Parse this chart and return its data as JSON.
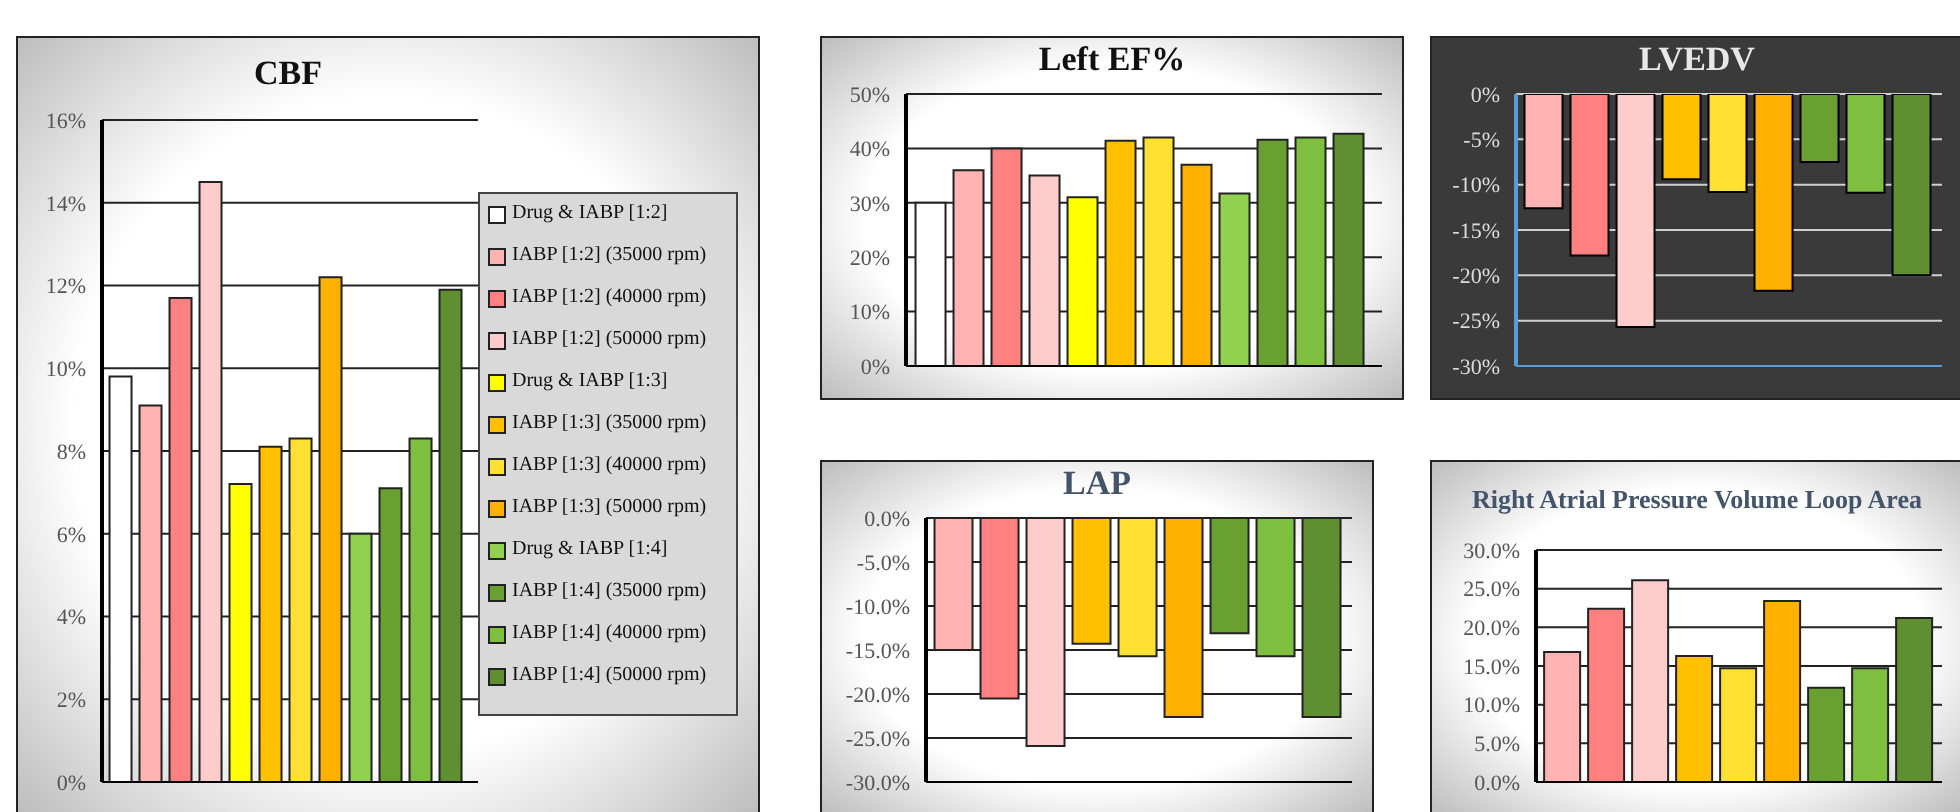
{
  "chart_data": [
    {
      "type": "bar",
      "title": "CBF",
      "categories": [
        null
      ],
      "ylim": [
        0,
        16
      ],
      "yticks": [
        {
          "value": 0,
          "label": "0%"
        },
        {
          "value": 2,
          "label": "2%"
        },
        {
          "value": 4,
          "label": "4%"
        },
        {
          "value": 6,
          "label": "6%"
        },
        {
          "value": 8,
          "label": "8%"
        },
        {
          "value": 10,
          "label": "10%"
        },
        {
          "value": 12,
          "label": "12%"
        },
        {
          "value": 14,
          "label": "14%"
        },
        {
          "value": 16,
          "label": "16%"
        }
      ],
      "grid": "y",
      "legend": "right",
      "tick_labels": "y",
      "series": [
        {
          "name": "Drug & IABP [1:2]",
          "color": "#ffffff",
          "values": [
            9.8
          ]
        },
        {
          "name": "IABP [1:2] (35000 rpm)",
          "color": "#ffb3b3",
          "values": [
            9.1
          ]
        },
        {
          "name": "IABP [1:2] (40000 rpm)",
          "color": "#ff8080",
          "values": [
            11.7
          ]
        },
        {
          "name": "IABP [1:2] (50000 rpm)",
          "color": "#ffcccc",
          "values": [
            14.5
          ]
        },
        {
          "name": "Drug & IABP [1:3]",
          "color": "#ffff00",
          "values": [
            7.2
          ]
        },
        {
          "name": "IABP [1:3] (35000 rpm)",
          "color": "#ffc000",
          "values": [
            8.1
          ]
        },
        {
          "name": "IABP [1:3] (40000 rpm)",
          "color": "#ffe033",
          "values": [
            8.3
          ]
        },
        {
          "name": "IABP [1:3] (50000 rpm)",
          "color": "#ffb000",
          "values": [
            12.2
          ]
        },
        {
          "name": "Drug & IABP [1:4]",
          "color": "#92d050",
          "values": [
            6.0
          ]
        },
        {
          "name": "IABP [1:4] (35000 rpm)",
          "color": "#6aa032",
          "values": [
            7.1
          ]
        },
        {
          "name": "IABP [1:4] (40000 rpm)",
          "color": "#7fbf40",
          "values": [
            8.3
          ]
        },
        {
          "name": "IABP [1:4] (50000 rpm)",
          "color": "#5f8f30",
          "values": [
            11.9
          ]
        }
      ]
    },
    {
      "type": "bar",
      "title": "Left EF%",
      "categories": [
        null
      ],
      "ylim": [
        0,
        50
      ],
      "yticks": [
        {
          "value": 0,
          "label": "0%"
        },
        {
          "value": 10,
          "label": "10%"
        },
        {
          "value": 20,
          "label": "20%"
        },
        {
          "value": 30,
          "label": "30%"
        },
        {
          "value": 40,
          "label": "40%"
        },
        {
          "value": 50,
          "label": "50%"
        }
      ],
      "grid": "y",
      "tick_labels": "y",
      "series": [
        {
          "color": "#ffffff",
          "values": [
            30
          ]
        },
        {
          "color": "#ffb3b3",
          "values": [
            36
          ]
        },
        {
          "color": "#ff8080",
          "values": [
            40
          ]
        },
        {
          "color": "#ffcccc",
          "values": [
            35
          ]
        },
        {
          "color": "#ffff00",
          "values": [
            31
          ]
        },
        {
          "color": "#ffc000",
          "values": [
            41.4
          ]
        },
        {
          "color": "#ffe033",
          "values": [
            42
          ]
        },
        {
          "color": "#ffb000",
          "values": [
            37
          ]
        },
        {
          "color": "#92d050",
          "values": [
            31.7
          ]
        },
        {
          "color": "#6aa032",
          "values": [
            41.6
          ]
        },
        {
          "color": "#7fbf40",
          "values": [
            42
          ]
        },
        {
          "color": "#5f8f30",
          "values": [
            42.7
          ]
        }
      ]
    },
    {
      "type": "bar",
      "title": "LVEDV",
      "categories": [
        null
      ],
      "ylim": [
        -30,
        0
      ],
      "yticks": [
        {
          "value": -30,
          "label": "-30%"
        },
        {
          "value": -25,
          "label": "-25%"
        },
        {
          "value": -20,
          "label": "-20%"
        },
        {
          "value": -15,
          "label": "-15%"
        },
        {
          "value": -10,
          "label": "-10%"
        },
        {
          "value": -5,
          "label": "-5%"
        },
        {
          "value": 0,
          "label": "0%"
        }
      ],
      "grid": "y",
      "tick_labels": "y",
      "series": [
        {
          "color": "#ffb3b3",
          "values": [
            -12.6
          ]
        },
        {
          "color": "#ff8080",
          "values": [
            -17.8
          ]
        },
        {
          "color": "#ffcccc",
          "values": [
            -25.7
          ]
        },
        {
          "color": "#ffc000",
          "values": [
            -9.4
          ]
        },
        {
          "color": "#ffe033",
          "values": [
            -10.8
          ]
        },
        {
          "color": "#ffb000",
          "values": [
            -21.7
          ]
        },
        {
          "color": "#6aa032",
          "values": [
            -7.5
          ]
        },
        {
          "color": "#7fbf40",
          "values": [
            -10.9
          ]
        },
        {
          "color": "#5f8f30",
          "values": [
            -20.0
          ]
        }
      ]
    },
    {
      "type": "bar",
      "title": "LAP",
      "categories": [
        null
      ],
      "ylim": [
        -30,
        0
      ],
      "yticks": [
        {
          "value": -30,
          "label": "-30.0%"
        },
        {
          "value": -25,
          "label": "-25.0%"
        },
        {
          "value": -20,
          "label": "-20.0%"
        },
        {
          "value": -15,
          "label": "-15.0%"
        },
        {
          "value": -10,
          "label": "-10.0%"
        },
        {
          "value": -5,
          "label": "-5.0%"
        },
        {
          "value": 0,
          "label": "0.0%"
        }
      ],
      "grid": "y",
      "tick_labels": "y",
      "series": [
        {
          "color": "#ffb3b3",
          "values": [
            -15.0
          ]
        },
        {
          "color": "#ff8080",
          "values": [
            -20.5
          ]
        },
        {
          "color": "#ffcccc",
          "values": [
            -25.9
          ]
        },
        {
          "color": "#ffc000",
          "values": [
            -14.3
          ]
        },
        {
          "color": "#ffe033",
          "values": [
            -15.7
          ]
        },
        {
          "color": "#ffb000",
          "values": [
            -22.6
          ]
        },
        {
          "color": "#6aa032",
          "values": [
            -13.1
          ]
        },
        {
          "color": "#7fbf40",
          "values": [
            -15.7
          ]
        },
        {
          "color": "#5f8f30",
          "values": [
            -22.6
          ]
        }
      ]
    },
    {
      "type": "bar",
      "title": "Right Atrial Pressure Volume Loop Area",
      "categories": [
        null
      ],
      "ylim": [
        0,
        30
      ],
      "yticks": [
        {
          "value": 0,
          "label": "0.0%"
        },
        {
          "value": 5,
          "label": "5.0%"
        },
        {
          "value": 10,
          "label": "10.0%"
        },
        {
          "value": 15,
          "label": "15.0%"
        },
        {
          "value": 20,
          "label": "20.0%"
        },
        {
          "value": 25,
          "label": "25.0%"
        },
        {
          "value": 30,
          "label": "30.0%"
        }
      ],
      "grid": "y",
      "tick_labels": "y",
      "series": [
        {
          "color": "#ffb3b3",
          "values": [
            16.8
          ]
        },
        {
          "color": "#ff8080",
          "values": [
            22.4
          ]
        },
        {
          "color": "#ffcccc",
          "values": [
            26.1
          ]
        },
        {
          "color": "#ffc000",
          "values": [
            16.3
          ]
        },
        {
          "color": "#ffe033",
          "values": [
            14.7
          ]
        },
        {
          "color": "#ffb000",
          "values": [
            23.4
          ]
        },
        {
          "color": "#6aa032",
          "values": [
            12.2
          ]
        },
        {
          "color": "#7fbf40",
          "values": [
            14.7
          ]
        },
        {
          "color": "#5f8f30",
          "values": [
            21.2
          ]
        }
      ]
    }
  ]
}
